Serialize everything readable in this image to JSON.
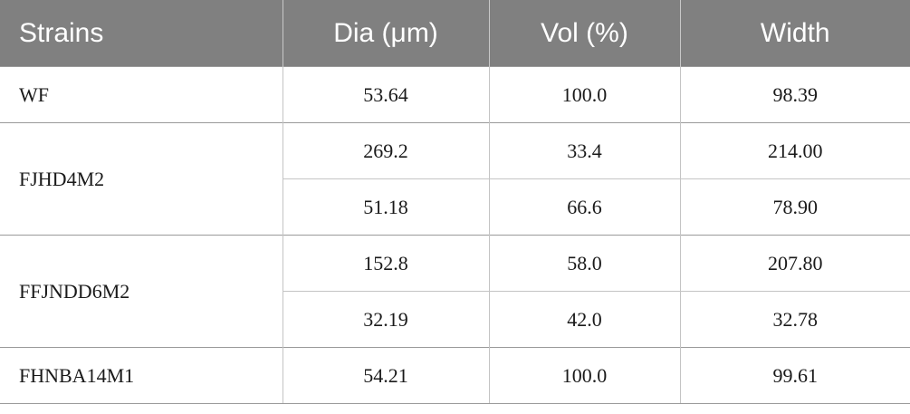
{
  "table": {
    "headers": [
      "Strains",
      "Dia (μm)",
      "Vol (%)",
      "Width"
    ],
    "groups": [
      {
        "strain": "WF",
        "rows": [
          [
            "53.64",
            "100.0",
            "98.39"
          ]
        ]
      },
      {
        "strain": "FJHD4M2",
        "rows": [
          [
            "269.2",
            "33.4",
            "214.00"
          ],
          [
            "51.18",
            "66.6",
            "78.90"
          ]
        ]
      },
      {
        "strain": "FFJNDD6M2",
        "rows": [
          [
            "152.8",
            "58.0",
            "207.80"
          ],
          [
            "32.19",
            "42.0",
            "32.78"
          ]
        ]
      },
      {
        "strain": "FHNBA14M1",
        "rows": [
          [
            "54.21",
            "100.0",
            "99.61"
          ]
        ]
      }
    ]
  }
}
